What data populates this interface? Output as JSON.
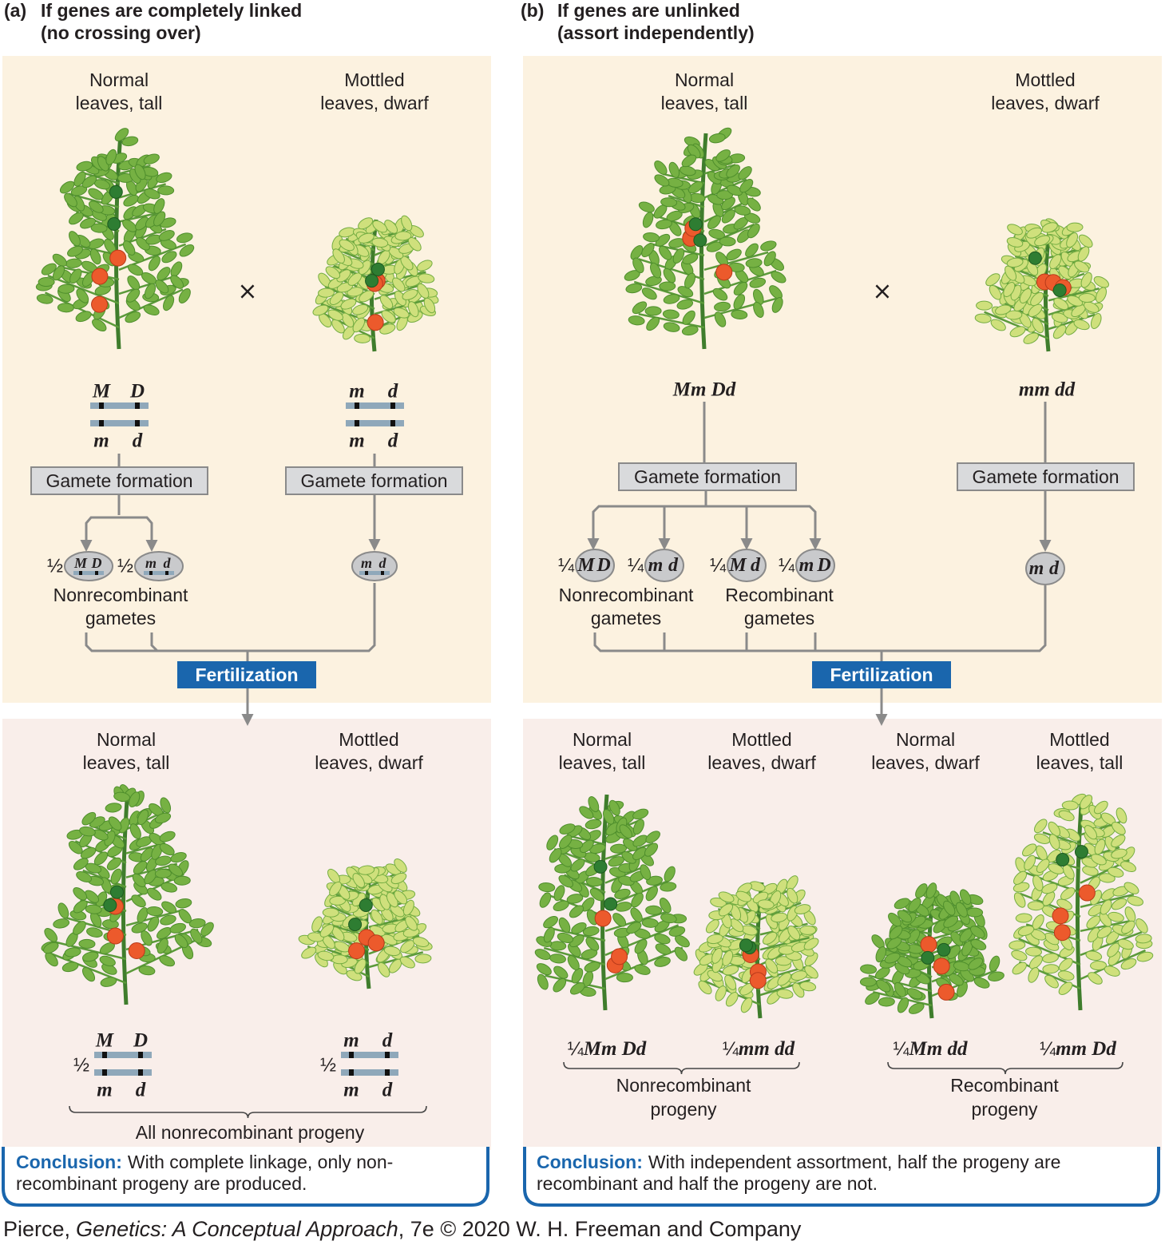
{
  "panel_a": {
    "label": "(a)",
    "title": [
      "If genes are completely linked",
      "(no crossing over)"
    ],
    "parents": [
      {
        "phenotype": [
          "Normal",
          "leaves, tall"
        ],
        "chromosome": {
          "top": [
            "M",
            "D"
          ],
          "bottom": [
            "m",
            "d"
          ]
        },
        "gamete_formation": "Gamete formation"
      },
      {
        "phenotype": [
          "Mottled",
          "leaves, dwarf"
        ],
        "chromosome": {
          "top": [
            "m",
            "d"
          ],
          "bottom": [
            "m",
            "d"
          ]
        },
        "gamete_formation": "Gamete formation"
      }
    ],
    "cross": "×",
    "gametes": [
      {
        "fraction": "½",
        "alleles": [
          "M",
          "D"
        ]
      },
      {
        "fraction": "½",
        "alleles": [
          "m",
          "d"
        ]
      },
      {
        "alleles": [
          "m",
          "d"
        ]
      }
    ],
    "gamete_groups": [
      {
        "label": [
          "Nonrecombinant",
          "gametes"
        ]
      }
    ],
    "fertilization": "Fertilization",
    "progeny": [
      {
        "phenotype": [
          "Normal",
          "leaves, tall"
        ],
        "fraction": "½",
        "chromosome": {
          "top": [
            "M",
            "D"
          ],
          "bottom": [
            "m",
            "d"
          ]
        }
      },
      {
        "phenotype": [
          "Mottled",
          "leaves, dwarf"
        ],
        "fraction": "½",
        "chromosome": {
          "top": [
            "m",
            "d"
          ],
          "bottom": [
            "m",
            "d"
          ]
        }
      }
    ],
    "progeny_groups": [
      {
        "label": [
          "All nonrecombinant progeny"
        ]
      }
    ],
    "conclusion": {
      "heading": "Conclusion:",
      "lines": [
        "With complete linkage, only non-",
        "recombinant progeny are produced."
      ]
    }
  },
  "panel_b": {
    "label": "(b)",
    "title": [
      "If genes are unlinked",
      "(assort independently)"
    ],
    "parents": [
      {
        "phenotype": [
          "Normal",
          "leaves, tall"
        ],
        "genotype": "Mm Dd",
        "gamete_formation": "Gamete formation"
      },
      {
        "phenotype": [
          "Mottled",
          "leaves, dwarf"
        ],
        "genotype": "mm dd",
        "gamete_formation": "Gamete formation"
      }
    ],
    "cross": "×",
    "gametes": [
      {
        "fraction": "¼",
        "alleles": [
          "M",
          "D"
        ]
      },
      {
        "fraction": "¼",
        "alleles": [
          "m",
          "d"
        ]
      },
      {
        "fraction": "¼",
        "alleles": [
          "M",
          "d"
        ]
      },
      {
        "fraction": "¼",
        "alleles": [
          "m",
          "D"
        ]
      },
      {
        "alleles": [
          "m",
          "d"
        ]
      }
    ],
    "gamete_groups": [
      {
        "label": [
          "Nonrecombinant",
          "gametes"
        ]
      },
      {
        "label": [
          "Recombinant",
          "gametes"
        ]
      }
    ],
    "fertilization": "Fertilization",
    "progeny": [
      {
        "phenotype": [
          "Normal",
          "leaves, tall"
        ],
        "fraction": "¼",
        "genotype": "Mm Dd"
      },
      {
        "phenotype": [
          "Mottled",
          "leaves, dwarf"
        ],
        "fraction": "¼",
        "genotype": "mm dd"
      },
      {
        "phenotype": [
          "Normal",
          "leaves, dwarf"
        ],
        "fraction": "¼",
        "genotype": "Mm dd"
      },
      {
        "phenotype": [
          "Mottled",
          "leaves, tall"
        ],
        "fraction": "¼",
        "genotype": "mm Dd"
      }
    ],
    "progeny_groups": [
      {
        "label": [
          "Nonrecombinant",
          "progeny"
        ]
      },
      {
        "label": [
          "Recombinant",
          "progeny"
        ]
      }
    ],
    "conclusion": {
      "heading": "Conclusion:",
      "lines": [
        "With independent assortment, half the progeny are",
        "recombinant and half the progeny are not."
      ]
    }
  },
  "credit": {
    "author": "Pierce,",
    "book": "Genetics: A Conceptual Approach",
    "edition": ", 7e © 2020 W. H. Freeman and Company"
  }
}
